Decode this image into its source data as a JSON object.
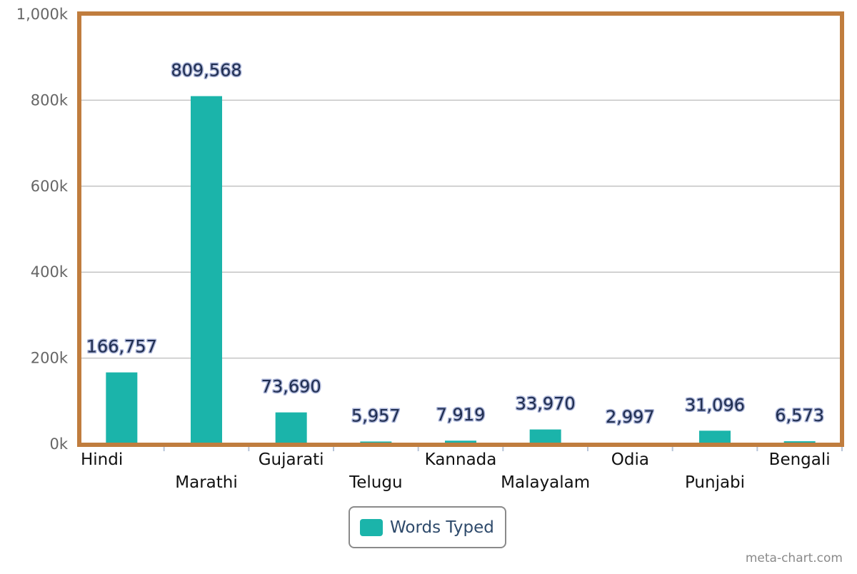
{
  "colors": {
    "bar": "#1bb4aa",
    "frame": "#c07d3e",
    "grid": "#c4c4c4",
    "axis_tick": "#b7c4d8"
  },
  "chart_data": {
    "type": "bar",
    "categories": [
      "Hindi",
      "Marathi",
      "Gujarati",
      "Telugu",
      "Kannada",
      "Malayalam",
      "Odia",
      "Punjabi",
      "Bengali"
    ],
    "series": [
      {
        "name": "Words Typed",
        "values": [
          166757,
          809568,
          73690,
          5957,
          7919,
          33970,
          2997,
          31096,
          6573
        ],
        "labels": [
          "166,757",
          "809,568",
          "73,690",
          "5,957",
          "7,919",
          "33,970",
          "2,997",
          "31,096",
          "6,573"
        ]
      }
    ],
    "y_ticks": [
      "0k",
      "200k",
      "400k",
      "600k",
      "800k",
      "1,000k"
    ],
    "ylim": [
      0,
      1000000
    ],
    "grid": true,
    "legend": "bottom-center"
  },
  "legend": {
    "label": "Words Typed"
  },
  "credit": "meta-chart.com"
}
